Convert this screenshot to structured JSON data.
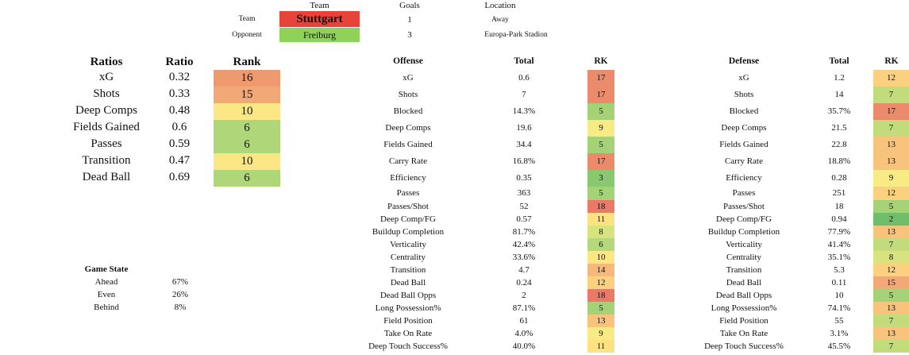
{
  "match": {
    "header_team": "Team",
    "header_goals": "Goals",
    "header_location": "Location",
    "team_label": "Team",
    "opponent_label": "Opponent",
    "team_name": "Stuttgart",
    "opponent_name": "Freiburg",
    "team_goals": "1",
    "opponent_goals": "3",
    "team_location": "Away",
    "opponent_location": "Europa-Park Stadion",
    "team_color": "#e8433a",
    "opponent_color": "#8fd15a"
  },
  "ratios": {
    "headers": [
      "Ratios",
      "Ratio",
      "Rank"
    ],
    "rows": [
      {
        "name": "xG",
        "ratio": "0.32",
        "rank": "16",
        "color": "#ee9a6e"
      },
      {
        "name": "Shots",
        "ratio": "0.33",
        "rank": "15",
        "color": "#f3a877"
      },
      {
        "name": "Deep Comps",
        "ratio": "0.48",
        "rank": "10",
        "color": "#fbe783"
      },
      {
        "name": "Fields Gained",
        "ratio": "0.6",
        "rank": "6",
        "color": "#b0d67a"
      },
      {
        "name": "Passes",
        "ratio": "0.59",
        "rank": "6",
        "color": "#b0d67a"
      },
      {
        "name": "Transition",
        "ratio": "0.47",
        "rank": "10",
        "color": "#fbe783"
      },
      {
        "name": "Dead Ball",
        "ratio": "0.69",
        "rank": "6",
        "color": "#b0d67a"
      }
    ]
  },
  "game_state": {
    "title": "Game State",
    "rows": [
      {
        "label": "Ahead",
        "value": "67%"
      },
      {
        "label": "Even",
        "value": "26%"
      },
      {
        "label": "Behind",
        "value": "8%"
      }
    ]
  },
  "offense": {
    "headers": [
      "Offense",
      "Total",
      "RK"
    ],
    "rows": [
      {
        "name": "xG",
        "total": "0.6",
        "rk": "17",
        "color": "#ec8a6c"
      },
      {
        "name": "Shots",
        "total": "7",
        "rk": "17",
        "color": "#ec8a6c"
      },
      {
        "name": "Blocked",
        "total": "14.3%",
        "rk": "5",
        "color": "#a6d277"
      },
      {
        "name": "Deep Comps",
        "total": "19.6",
        "rk": "9",
        "color": "#f8ea84"
      },
      {
        "name": "Fields Gained",
        "total": "34.4",
        "rk": "5",
        "color": "#a6d277"
      },
      {
        "name": "Carry Rate",
        "total": "16.8%",
        "rk": "17",
        "color": "#ec8a6c"
      },
      {
        "name": "Efficiency",
        "total": "0.35",
        "rk": "3",
        "color": "#88c86f"
      },
      {
        "name": "Passes",
        "total": "363",
        "rk": "5",
        "color": "#a6d277"
      },
      {
        "name": "Passes/Shot",
        "total": "52",
        "rk": "18",
        "color": "#ea7a67"
      },
      {
        "name": "Deep Comp/FG",
        "total": "0.57",
        "rk": "11",
        "color": "#fde281"
      },
      {
        "name": "Buildup Completion",
        "total": "81.7%",
        "rk": "8",
        "color": "#d6e37f"
      },
      {
        "name": "Verticality",
        "total": "42.4%",
        "rk": "6",
        "color": "#b4d87a"
      },
      {
        "name": "Centrality",
        "total": "33.6%",
        "rk": "10",
        "color": "#fbe783"
      },
      {
        "name": "Transition",
        "total": "4.7",
        "rk": "14",
        "color": "#f6b97b"
      },
      {
        "name": "Dead Ball",
        "total": "0.24",
        "rk": "12",
        "color": "#fbd07f"
      },
      {
        "name": "Dead Ball Opps",
        "total": "2",
        "rk": "18",
        "color": "#ea7a67"
      },
      {
        "name": "Long Possession%",
        "total": "87.1%",
        "rk": "5",
        "color": "#a6d277"
      },
      {
        "name": "Field Position",
        "total": "61",
        "rk": "13",
        "color": "#f8c47d"
      },
      {
        "name": "Take On Rate",
        "total": "4.0%",
        "rk": "9",
        "color": "#f8ea84"
      },
      {
        "name": "Deep Touch Success%",
        "total": "40.0%",
        "rk": "11",
        "color": "#fde281"
      }
    ]
  },
  "defense": {
    "headers": [
      "Defense",
      "Total",
      "RK"
    ],
    "rows": [
      {
        "name": "xG",
        "total": "1.2",
        "rk": "12",
        "color": "#fbd07f"
      },
      {
        "name": "Shots",
        "total": "14",
        "rk": "7",
        "color": "#c2dc7c"
      },
      {
        "name": "Blocked",
        "total": "35.7%",
        "rk": "17",
        "color": "#ec8a6c"
      },
      {
        "name": "Deep Comps",
        "total": "21.5",
        "rk": "7",
        "color": "#c2dc7c"
      },
      {
        "name": "Fields Gained",
        "total": "22.8",
        "rk": "13",
        "color": "#f8c47d"
      },
      {
        "name": "Carry Rate",
        "total": "18.8%",
        "rk": "13",
        "color": "#f8c47d"
      },
      {
        "name": "Efficiency",
        "total": "0.28",
        "rk": "9",
        "color": "#f8ea84"
      },
      {
        "name": "Passes",
        "total": "251",
        "rk": "12",
        "color": "#fbd07f"
      },
      {
        "name": "Passes/Shot",
        "total": "18",
        "rk": "5",
        "color": "#a6d277"
      },
      {
        "name": "Deep Comp/FG",
        "total": "0.94",
        "rk": "2",
        "color": "#6fbf6a"
      },
      {
        "name": "Buildup Completion",
        "total": "77.9%",
        "rk": "13",
        "color": "#f8c47d"
      },
      {
        "name": "Verticality",
        "total": "41.4%",
        "rk": "7",
        "color": "#c2dc7c"
      },
      {
        "name": "Centrality",
        "total": "35.1%",
        "rk": "8",
        "color": "#d6e37f"
      },
      {
        "name": "Transition",
        "total": "5.3",
        "rk": "12",
        "color": "#fbd07f"
      },
      {
        "name": "Dead Ball",
        "total": "0.11",
        "rk": "15",
        "color": "#f3a877"
      },
      {
        "name": "Dead Ball Opps",
        "total": "10",
        "rk": "5",
        "color": "#a6d277"
      },
      {
        "name": "Long Possession%",
        "total": "74.1%",
        "rk": "13",
        "color": "#f8c47d"
      },
      {
        "name": "Field Position",
        "total": "55",
        "rk": "7",
        "color": "#c2dc7c"
      },
      {
        "name": "Take On Rate",
        "total": "3.1%",
        "rk": "13",
        "color": "#f8c47d"
      },
      {
        "name": "Deep Touch Success%",
        "total": "45.5%",
        "rk": "7",
        "color": "#c2dc7c"
      }
    ]
  }
}
